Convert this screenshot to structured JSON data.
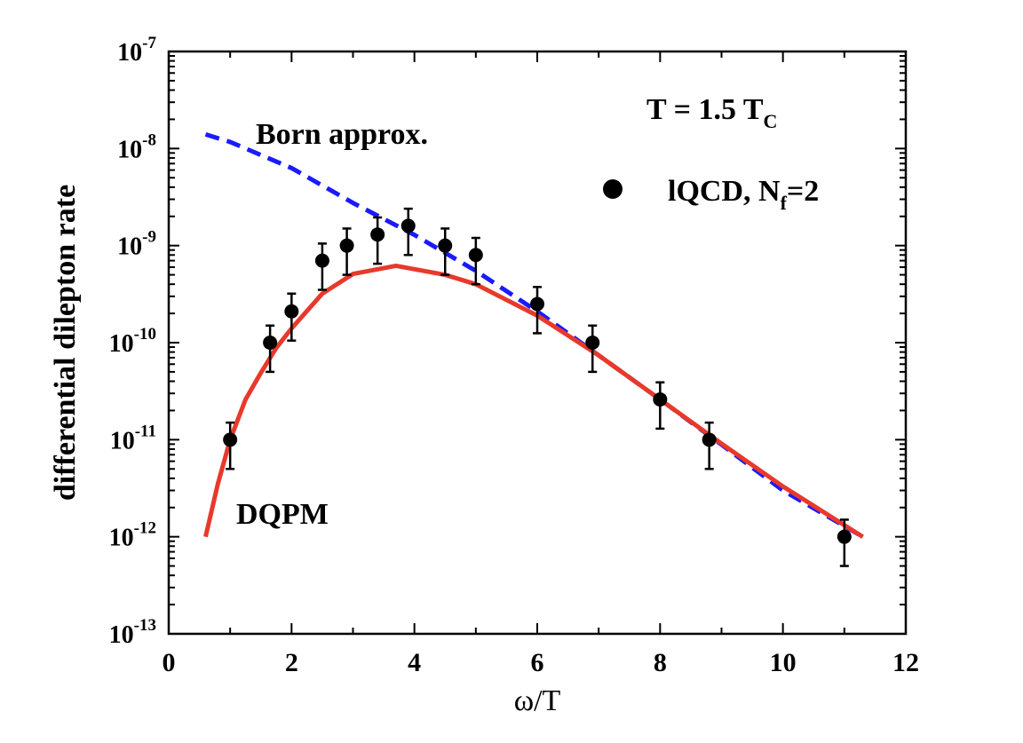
{
  "chart_data": {
    "type": "scatter",
    "xlabel": "ω/T",
    "ylabel": "differential dilepton rate",
    "xlim": [
      0,
      12
    ],
    "ylim": [
      1e-13,
      1e-07
    ],
    "yscale": "log",
    "grid": false,
    "x_ticks": [
      0,
      2,
      4,
      6,
      8,
      10,
      12
    ],
    "y_ticks": [
      {
        "base": "10",
        "exp": "-7",
        "value": 1e-07
      },
      {
        "base": "10",
        "exp": "-8",
        "value": 1e-08
      },
      {
        "base": "10",
        "exp": "-9",
        "value": 1e-09
      },
      {
        "base": "10",
        "exp": "-10",
        "value": 1e-10
      },
      {
        "base": "10",
        "exp": "-11",
        "value": 1e-11
      },
      {
        "base": "10",
        "exp": "-12",
        "value": 1e-12
      },
      {
        "base": "10",
        "exp": "-13",
        "value": 1e-13
      }
    ],
    "annotations": {
      "temperature": {
        "main": "T = 1.5 T",
        "sub": "C"
      },
      "born": "Born approx.",
      "dqpm": "DQPM"
    },
    "legend": {
      "placement": "top-right",
      "label_main": "lQCD, N",
      "label_sub": "f",
      "label_tail": "=2"
    },
    "series": [
      {
        "name": "lQCD, Nf=2",
        "kind": "points-with-errorbars",
        "color": "#000000",
        "points": [
          {
            "x": 1.0,
            "y": 1e-11,
            "lo": 5e-12,
            "hi": 1.5e-11
          },
          {
            "x": 1.65,
            "y": 1e-10,
            "lo": 5e-11,
            "hi": 1.5e-10
          },
          {
            "x": 2.0,
            "y": 2.1e-10,
            "lo": 1.05e-10,
            "hi": 3.2e-10
          },
          {
            "x": 2.5,
            "y": 7e-10,
            "lo": 3.5e-10,
            "hi": 1.05e-09
          },
          {
            "x": 2.9,
            "y": 1e-09,
            "lo": 5e-10,
            "hi": 1.5e-09
          },
          {
            "x": 3.4,
            "y": 1.3e-09,
            "lo": 6.5e-10,
            "hi": 1.95e-09
          },
          {
            "x": 3.9,
            "y": 1.6e-09,
            "lo": 8e-10,
            "hi": 2.4e-09
          },
          {
            "x": 4.5,
            "y": 1e-09,
            "lo": 5e-10,
            "hi": 1.5e-09
          },
          {
            "x": 5.0,
            "y": 8e-10,
            "lo": 4e-10,
            "hi": 1.2e-09
          },
          {
            "x": 6.0,
            "y": 2.5e-10,
            "lo": 1.25e-10,
            "hi": 3.75e-10
          },
          {
            "x": 6.9,
            "y": 1e-10,
            "lo": 5e-11,
            "hi": 1.5e-10
          },
          {
            "x": 8.0,
            "y": 2.6e-11,
            "lo": 1.3e-11,
            "hi": 3.9e-11
          },
          {
            "x": 8.8,
            "y": 1e-11,
            "lo": 5e-12,
            "hi": 1.5e-11
          },
          {
            "x": 11.0,
            "y": 1e-12,
            "lo": 5e-13,
            "hi": 1.5e-12
          }
        ]
      },
      {
        "name": "Born approx.",
        "kind": "dashed-line",
        "color": "#1a1aff",
        "x": [
          0.6,
          1,
          2,
          3,
          4,
          5,
          6,
          7,
          8,
          9,
          10,
          11.3
        ],
        "y": [
          1.4e-08,
          1.17e-08,
          6.3e-09,
          2.75e-09,
          1.29e-09,
          5.5e-10,
          2.1e-10,
          7.4e-11,
          2.6e-11,
          8.9e-12,
          3e-12,
          1e-12
        ]
      },
      {
        "name": "DQPM",
        "kind": "solid-line",
        "color": "#e8392b",
        "x": [
          0.6,
          0.8,
          1,
          1.25,
          1.5,
          1.75,
          2,
          2.5,
          3,
          3.7,
          4.5,
          5,
          6,
          7,
          8,
          9,
          10,
          11.3
        ],
        "y": [
          1e-12,
          3.5e-12,
          1e-11,
          2.6e-11,
          4.9e-11,
          8.8e-11,
          1.4e-10,
          3.2e-10,
          5.1e-10,
          6.2e-10,
          5e-10,
          4e-10,
          1.9e-10,
          7.4e-11,
          2.6e-11,
          9.1e-12,
          3.3e-12,
          1e-12
        ]
      }
    ]
  }
}
